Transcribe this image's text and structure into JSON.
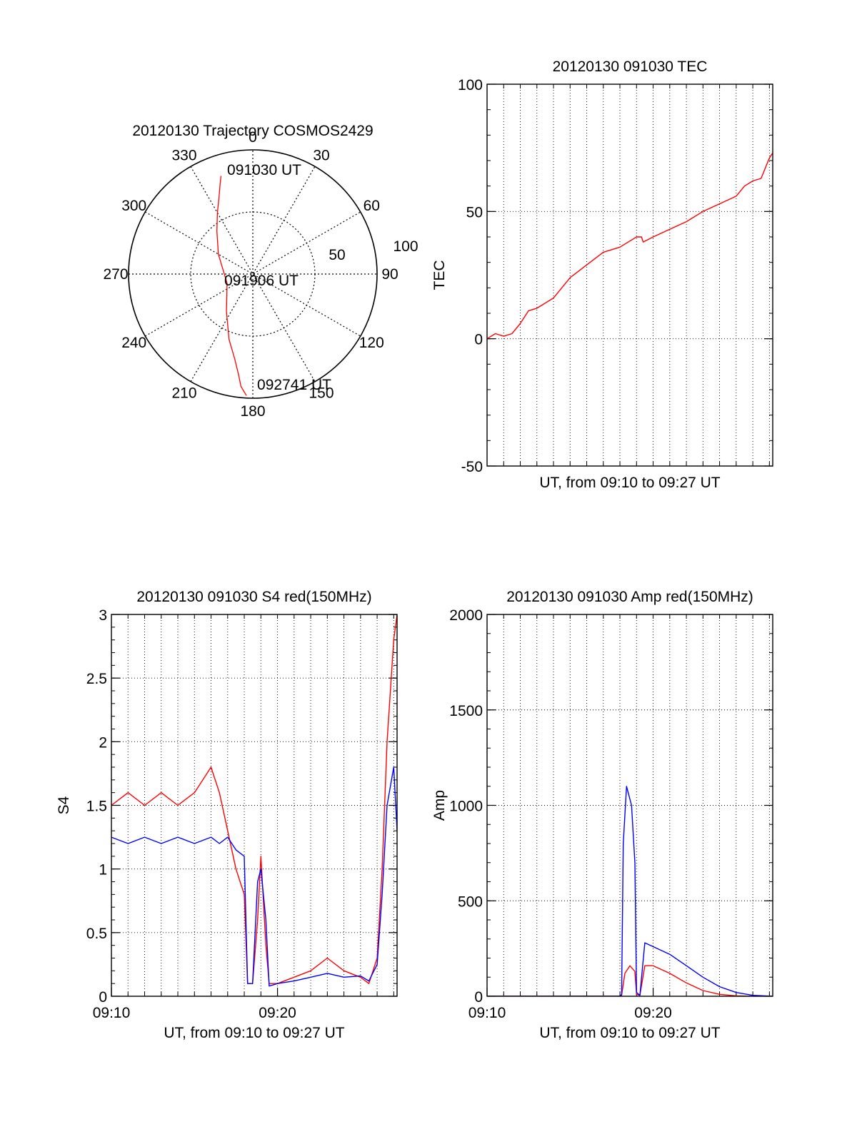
{
  "chart_data": [
    {
      "type": "polar",
      "title": "20120130 Trajectory COSMOS2429",
      "azimuth_labels": [
        "0",
        "30",
        "60",
        "90",
        "120",
        "150",
        "180",
        "210",
        "240",
        "270",
        "300",
        "330"
      ],
      "radial_labels": [
        "50",
        "100"
      ],
      "rlim": [
        0,
        100
      ],
      "grid": true,
      "time_labels": [
        "091030 UT",
        "091906 UT",
        "092741 UT"
      ],
      "series": [
        {
          "color": "#ff0000",
          "azimuth": [
            342,
            340,
            336,
            330,
            320,
            300,
            250,
            215,
            200,
            192,
            188,
            186,
            183
          ],
          "radius": [
            83,
            77,
            67,
            57,
            45,
            32,
            22,
            37,
            56,
            70,
            82,
            91,
            98
          ]
        }
      ]
    },
    {
      "type": "line",
      "title": "20120130 091030 TEC",
      "xlabel": "UT, from 09:10 to 09:27 UT",
      "ylabel": "TEC",
      "ylim": [
        -50,
        100
      ],
      "yticks": [
        "-50",
        "0",
        "50",
        "100"
      ],
      "xlim": [
        0,
        17.2
      ],
      "grid": true,
      "series": [
        {
          "color": "#ff0000",
          "x": [
            0,
            0.5,
            1,
            1.5,
            2,
            2.5,
            3,
            4,
            5,
            6,
            7,
            8,
            9,
            9.3,
            9.4,
            10,
            11,
            12,
            13,
            14,
            15,
            15.5,
            16,
            16.5,
            17,
            17.2
          ],
          "y": [
            0,
            2,
            1,
            2,
            6,
            11,
            12,
            16,
            24,
            29,
            34,
            36,
            40,
            40,
            38,
            40,
            43,
            46,
            50,
            53,
            56,
            60,
            62,
            63,
            71,
            73
          ]
        }
      ]
    },
    {
      "type": "line",
      "title": "20120130 091030 S4 red(150MHz)",
      "xlabel": "UT, from 09:10 to 09:27 UT",
      "ylabel": "S4",
      "ylim": [
        0,
        3
      ],
      "yticks": [
        "0",
        "0.5",
        "1",
        "1.5",
        "2",
        "2.5",
        "3"
      ],
      "xticks": [
        "09:10",
        "09:20"
      ],
      "xlim": [
        0,
        17.2
      ],
      "grid": true,
      "series": [
        {
          "color": "#ff0000",
          "x": [
            0,
            1,
            2,
            3,
            4,
            5,
            6,
            6.5,
            7,
            7.5,
            8,
            8.2,
            8.5,
            8.8,
            9,
            9.3,
            9.5,
            10,
            11,
            12,
            13,
            14,
            15,
            15.5,
            16,
            16.3,
            16.6,
            17,
            17.2
          ],
          "y": [
            1.5,
            1.6,
            1.5,
            1.6,
            1.5,
            1.6,
            1.8,
            1.6,
            1.3,
            1.0,
            0.8,
            0.1,
            0.1,
            0.6,
            1.1,
            0.4,
            0.1,
            0.1,
            0.15,
            0.2,
            0.3,
            0.2,
            0.15,
            0.1,
            0.3,
            1.0,
            2.0,
            2.8,
            3.0
          ]
        },
        {
          "color": "#0000ff",
          "x": [
            0,
            1,
            2,
            3,
            4,
            5,
            6,
            6.5,
            7,
            7.5,
            8,
            8.2,
            8.5,
            8.8,
            9,
            9.3,
            9.5,
            10,
            11,
            12,
            13,
            14,
            15,
            15.5,
            16,
            16.3,
            16.6,
            17,
            17.2
          ],
          "y": [
            1.25,
            1.2,
            1.25,
            1.2,
            1.25,
            1.2,
            1.25,
            1.2,
            1.25,
            1.15,
            1.1,
            0.1,
            0.1,
            0.9,
            1.0,
            0.6,
            0.08,
            0.1,
            0.12,
            0.15,
            0.18,
            0.15,
            0.16,
            0.12,
            0.25,
            0.8,
            1.5,
            1.8,
            1.3
          ]
        }
      ]
    },
    {
      "type": "line",
      "title": "20120130 091030 Amp red(150MHz)",
      "xlabel": "UT, from 09:10 to 09:27 UT",
      "ylabel": "Amp",
      "ylim": [
        0,
        2000
      ],
      "yticks": [
        "0",
        "500",
        "1000",
        "1500",
        "2000"
      ],
      "xticks": [
        "09:10",
        "09:20"
      ],
      "xlim": [
        0,
        17.2
      ],
      "grid": true,
      "series": [
        {
          "color": "#ff0000",
          "x": [
            0,
            8,
            8.1,
            8.3,
            8.6,
            8.9,
            9.0,
            9.2,
            9.5,
            10,
            11,
            12,
            13,
            14,
            15,
            16,
            17.2
          ],
          "y": [
            0,
            0,
            5,
            120,
            160,
            130,
            10,
            5,
            160,
            160,
            120,
            70,
            30,
            10,
            2,
            0,
            0
          ]
        },
        {
          "color": "#0000ff",
          "x": [
            0,
            8,
            8.1,
            8.2,
            8.4,
            8.7,
            8.9,
            9.0,
            9.2,
            9.5,
            10,
            11,
            12,
            13,
            14,
            15,
            16,
            17.2
          ],
          "y": [
            0,
            0,
            10,
            800,
            1100,
            1000,
            700,
            20,
            5,
            280,
            260,
            220,
            160,
            100,
            50,
            20,
            5,
            0
          ]
        }
      ]
    }
  ]
}
